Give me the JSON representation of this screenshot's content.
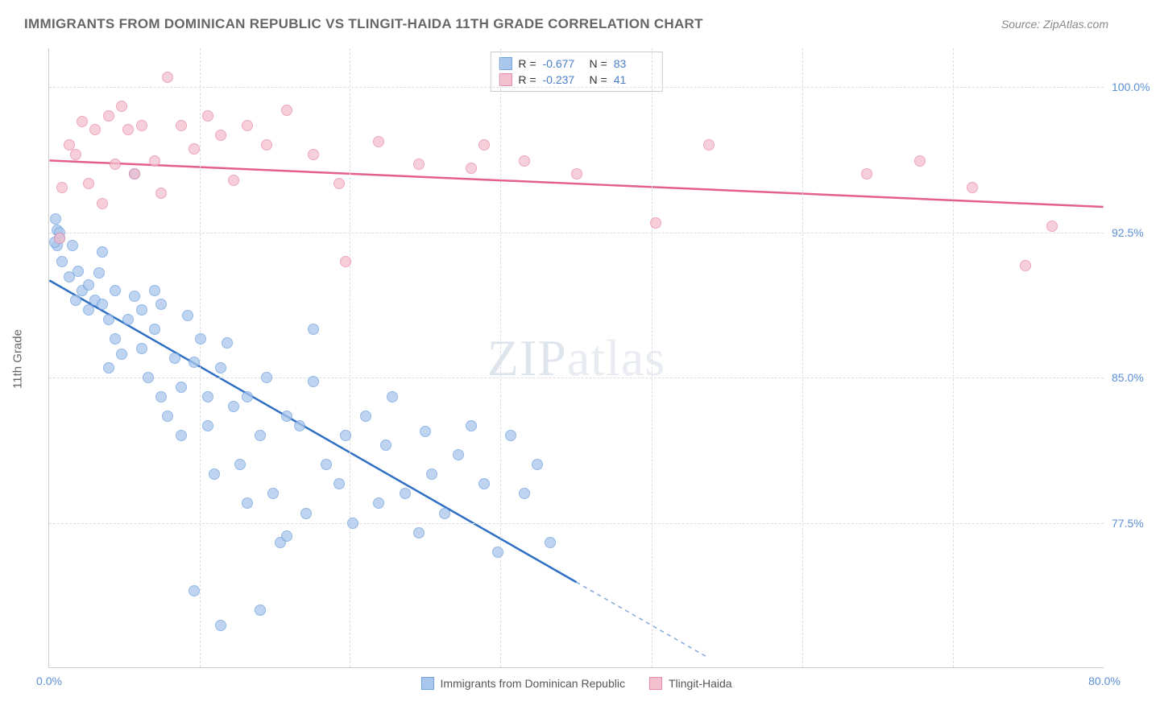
{
  "title": "IMMIGRANTS FROM DOMINICAN REPUBLIC VS TLINGIT-HAIDA 11TH GRADE CORRELATION CHART",
  "source_prefix": "Source: ",
  "source_name": "ZipAtlas.com",
  "ylabel": "11th Grade",
  "watermark_bold": "ZIP",
  "watermark_thin": "atlas",
  "chart": {
    "type": "scatter",
    "xlim": [
      0,
      80
    ],
    "ylim": [
      70,
      102
    ],
    "xticks": [
      0,
      80
    ],
    "xtick_labels": [
      "0.0%",
      "80.0%"
    ],
    "xtick_minor": [
      11.4,
      22.8,
      34.2,
      45.7,
      57.1,
      68.5
    ],
    "yticks": [
      77.5,
      85.0,
      92.5,
      100.0
    ],
    "ytick_labels": [
      "77.5%",
      "85.0%",
      "92.5%",
      "100.0%"
    ],
    "background_color": "#ffffff",
    "grid_color": "#dddddd",
    "marker_radius": 7,
    "line_width": 2.5
  },
  "series": [
    {
      "name": "Immigrants from Dominican Republic",
      "color_fill": "#a9c6ec",
      "color_stroke": "#6fa0dd",
      "line_color": "#2f6fc4",
      "R": "-0.677",
      "N": "83",
      "trend": {
        "x1": 0,
        "y1": 90.0,
        "x2": 50,
        "y2": 70.5,
        "dash_after_x": 40
      },
      "points": [
        [
          0.5,
          93.2
        ],
        [
          0.6,
          92.6
        ],
        [
          0.8,
          92.2
        ],
        [
          0.8,
          92.5
        ],
        [
          0.6,
          91.8
        ],
        [
          0.4,
          92.0
        ],
        [
          1.0,
          91.0
        ],
        [
          1.5,
          90.2
        ],
        [
          1.8,
          91.8
        ],
        [
          2.0,
          89.0
        ],
        [
          2.2,
          90.5
        ],
        [
          2.5,
          89.5
        ],
        [
          3.0,
          88.5
        ],
        [
          3.0,
          89.8
        ],
        [
          3.5,
          89.0
        ],
        [
          3.8,
          90.4
        ],
        [
          4.0,
          88.8
        ],
        [
          4.0,
          91.5
        ],
        [
          4.5,
          88.0
        ],
        [
          5.0,
          89.5
        ],
        [
          5.0,
          87.0
        ],
        [
          5.5,
          86.2
        ],
        [
          6.0,
          88.0
        ],
        [
          6.5,
          89.2
        ],
        [
          7.0,
          86.5
        ],
        [
          7.0,
          88.5
        ],
        [
          7.5,
          85.0
        ],
        [
          8.0,
          87.5
        ],
        [
          8.5,
          84.0
        ],
        [
          8.5,
          88.8
        ],
        [
          9.0,
          83.0
        ],
        [
          9.5,
          86.0
        ],
        [
          10.0,
          84.5
        ],
        [
          10.0,
          82.0
        ],
        [
          10.5,
          88.2
        ],
        [
          11.0,
          85.8
        ],
        [
          11.5,
          87.0
        ],
        [
          12.0,
          84.0
        ],
        [
          12.0,
          82.5
        ],
        [
          12.5,
          80.0
        ],
        [
          13.0,
          85.5
        ],
        [
          13.5,
          86.8
        ],
        [
          14.0,
          83.5
        ],
        [
          14.5,
          80.5
        ],
        [
          15.0,
          84.0
        ],
        [
          15.0,
          78.5
        ],
        [
          16.0,
          82.0
        ],
        [
          16.5,
          85.0
        ],
        [
          17.0,
          79.0
        ],
        [
          17.5,
          76.5
        ],
        [
          18.0,
          83.0
        ],
        [
          18.0,
          76.8
        ],
        [
          19.0,
          82.5
        ],
        [
          19.5,
          78.0
        ],
        [
          20.0,
          84.8
        ],
        [
          20.0,
          87.5
        ],
        [
          21.0,
          80.5
        ],
        [
          22.0,
          79.5
        ],
        [
          22.5,
          82.0
        ],
        [
          23.0,
          77.5
        ],
        [
          24.0,
          83.0
        ],
        [
          25.0,
          78.5
        ],
        [
          25.5,
          81.5
        ],
        [
          26.0,
          84.0
        ],
        [
          27.0,
          79.0
        ],
        [
          28.0,
          77.0
        ],
        [
          28.5,
          82.2
        ],
        [
          29.0,
          80.0
        ],
        [
          30.0,
          78.0
        ],
        [
          31.0,
          81.0
        ],
        [
          32.0,
          82.5
        ],
        [
          33.0,
          79.5
        ],
        [
          34.0,
          76.0
        ],
        [
          35.0,
          82.0
        ],
        [
          36.0,
          79.0
        ],
        [
          37.0,
          80.5
        ],
        [
          38.0,
          76.5
        ],
        [
          11.0,
          74.0
        ],
        [
          16.0,
          73.0
        ],
        [
          13.0,
          72.2
        ],
        [
          6.5,
          95.5
        ],
        [
          8.0,
          89.5
        ],
        [
          4.5,
          85.5
        ]
      ]
    },
    {
      "name": "Tlingit-Haida",
      "color_fill": "#f4bfce",
      "color_stroke": "#e88aa6",
      "line_color": "#e45f8a",
      "R": "-0.237",
      "N": "41",
      "trend": {
        "x1": 0,
        "y1": 96.2,
        "x2": 80,
        "y2": 93.8,
        "dash_after_x": 80
      },
      "points": [
        [
          0.8,
          92.2
        ],
        [
          1.0,
          94.8
        ],
        [
          1.5,
          97.0
        ],
        [
          2.0,
          96.5
        ],
        [
          2.5,
          98.2
        ],
        [
          3.0,
          95.0
        ],
        [
          3.5,
          97.8
        ],
        [
          4.0,
          94.0
        ],
        [
          4.5,
          98.5
        ],
        [
          5.0,
          96.0
        ],
        [
          5.5,
          99.0
        ],
        [
          6.0,
          97.8
        ],
        [
          6.5,
          95.5
        ],
        [
          7.0,
          98.0
        ],
        [
          8.0,
          96.2
        ],
        [
          8.5,
          94.5
        ],
        [
          9.0,
          100.5
        ],
        [
          10.0,
          98.0
        ],
        [
          11.0,
          96.8
        ],
        [
          12.0,
          98.5
        ],
        [
          13.0,
          97.5
        ],
        [
          14.0,
          95.2
        ],
        [
          15.0,
          98.0
        ],
        [
          16.5,
          97.0
        ],
        [
          18.0,
          98.8
        ],
        [
          20.0,
          96.5
        ],
        [
          22.0,
          95.0
        ],
        [
          22.5,
          91.0
        ],
        [
          25.0,
          97.2
        ],
        [
          28.0,
          96.0
        ],
        [
          32.0,
          95.8
        ],
        [
          33.0,
          97.0
        ],
        [
          36.0,
          96.2
        ],
        [
          40.0,
          95.5
        ],
        [
          46.0,
          93.0
        ],
        [
          50.0,
          97.0
        ],
        [
          62.0,
          95.5
        ],
        [
          66.0,
          96.2
        ],
        [
          70.0,
          94.8
        ],
        [
          74.0,
          90.8
        ],
        [
          76.0,
          92.8
        ]
      ]
    }
  ],
  "stats_labels": {
    "R": "R =",
    "N": "N ="
  }
}
